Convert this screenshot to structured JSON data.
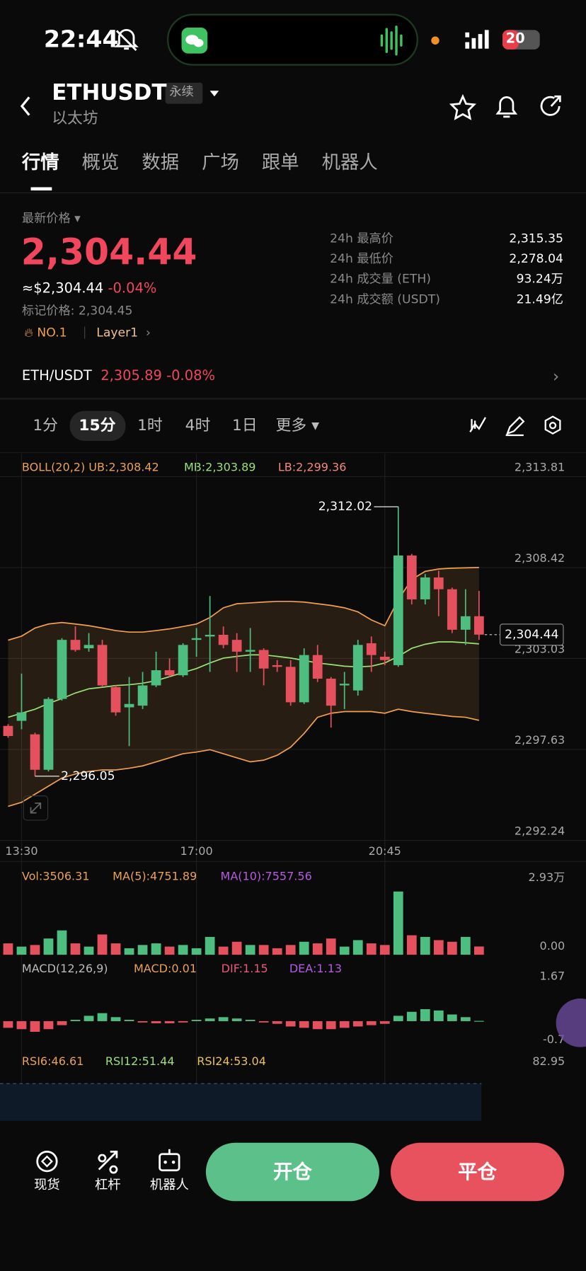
{
  "status_bar": {
    "time": "22:44",
    "battery": "20"
  },
  "header": {
    "symbol": "ETHUSDT",
    "tag": "永续",
    "name": "以太坊"
  },
  "tabs": [
    "行情",
    "概览",
    "数据",
    "广场",
    "跟单",
    "机器人"
  ],
  "ticker": {
    "label": "最新价格",
    "price": "2,304.44",
    "usd": "≈$2,304.44",
    "change": "-0.04%",
    "mark_price": "标记价格: 2,304.45",
    "rank": "NO.1",
    "sector": "Layer1",
    "stats": [
      {
        "label": "24h 最高价",
        "value": "2,315.35"
      },
      {
        "label": "24h 最低价",
        "value": "2,278.04"
      },
      {
        "label": "24h 成交量 (ETH)",
        "value": "93.24万"
      },
      {
        "label": "24h 成交额 (USDT)",
        "value": "21.49亿"
      }
    ]
  },
  "spot": {
    "pair": "ETH/USDT",
    "price": "2,305.89",
    "change": "-0.08%"
  },
  "intervals": [
    "1分",
    "15分",
    "1时",
    "4时",
    "1日",
    "更多"
  ],
  "kline": {
    "type": "candlestick",
    "boll_label": "BOLL(20,2) UB:2,308.42",
    "mb_label": "MB:2,303.89",
    "lb_label": "LB:2,299.36",
    "categories": [
      null,
      "13:30",
      null,
      null,
      null,
      null,
      null,
      null,
      null,
      null,
      null,
      null,
      null,
      null,
      "17:00",
      null,
      null,
      null,
      null,
      null,
      null,
      null,
      null,
      null,
      null,
      null,
      null,
      null,
      "20:45",
      null,
      null,
      null,
      null,
      null,
      null,
      null
    ],
    "open": [
      2299.03,
      2299.33,
      2298.53,
      2296.43,
      2300.63,
      2304.13,
      2303.63,
      2303.83,
      2301.33,
      2300.13,
      2300.23,
      2301.43,
      2302.33,
      2302.03,
      2304.13,
      2304.33,
      2304.43,
      2304.13,
      2303.43,
      2303.53,
      2302.63,
      2302.53,
      2300.43,
      2303.23,
      2301.83,
      2301.43,
      2301.13,
      2303.93,
      2303.13,
      2302.63,
      2309.13,
      2306.53,
      2307.83,
      2307.13,
      2304.73,
      2305.53
    ],
    "high": [
      2299.13,
      2302.13,
      2298.63,
      2300.73,
      2304.23,
      2304.93,
      2304.53,
      2304.13,
      2301.43,
      2301.93,
      2302.23,
      2303.43,
      2303.03,
      2303.93,
      2304.83,
      2306.73,
      2304.93,
      2304.53,
      2304.83,
      2303.63,
      2302.93,
      2302.93,
      2303.63,
      2303.83,
      2301.93,
      2302.23,
      2304.13,
      2304.33,
      2303.43,
      2312.02,
      2309.23,
      2308.03,
      2308.23,
      2307.23,
      2307.13,
      2307.03
    ],
    "low": [
      2298.33,
      2298.83,
      2296.05,
      2296.33,
      2300.53,
      2303.43,
      2303.43,
      2301.33,
      2299.63,
      2297.83,
      2300.03,
      2301.33,
      2301.93,
      2301.93,
      2303.13,
      2302.23,
      2303.63,
      2302.23,
      2302.23,
      2301.43,
      2302.23,
      2300.23,
      2300.33,
      2301.63,
      2298.93,
      2300.03,
      2300.83,
      2302.23,
      2302.63,
      2302.53,
      2306.23,
      2306.23,
      2305.53,
      2304.53,
      2303.83,
      2304.13
    ],
    "close": [
      2298.43,
      2299.83,
      2296.43,
      2300.63,
      2304.13,
      2303.53,
      2303.83,
      2301.43,
      2299.83,
      2300.33,
      2301.43,
      2302.33,
      2302.03,
      2303.83,
      2304.23,
      2304.43,
      2303.83,
      2303.43,
      2303.53,
      2302.43,
      2302.53,
      2300.43,
      2303.23,
      2301.83,
      2300.23,
      2301.53,
      2303.83,
      2303.23,
      2302.93,
      2309.13,
      2306.53,
      2307.83,
      2307.13,
      2304.73,
      2305.53,
      2304.44
    ],
    "ub": [
      2304.11,
      2304.35,
      2304.83,
      2305.07,
      2305.16,
      2305.07,
      2304.97,
      2304.83,
      2304.68,
      2304.59,
      2304.59,
      2304.68,
      2304.78,
      2304.92,
      2305.07,
      2305.45,
      2306.03,
      2306.27,
      2306.32,
      2306.37,
      2306.41,
      2306.41,
      2306.37,
      2306.27,
      2306.17,
      2306.03,
      2305.79,
      2305.31,
      2304.97,
      2306.51,
      2307.71,
      2308.19,
      2308.33,
      2308.38,
      2308.4,
      2308.42
    ],
    "mb": [
      2299.54,
      2299.78,
      2300.02,
      2300.36,
      2300.65,
      2300.98,
      2301.23,
      2301.32,
      2301.42,
      2301.47,
      2301.56,
      2301.71,
      2301.95,
      2302.19,
      2302.43,
      2302.76,
      2303.05,
      2303.15,
      2303.24,
      2303.24,
      2303.15,
      2303.05,
      2302.91,
      2302.76,
      2302.67,
      2302.57,
      2302.53,
      2302.57,
      2302.76,
      2303.15,
      2303.63,
      2303.87,
      2304.01,
      2304.01,
      2303.96,
      2303.89
    ],
    "lb": [
      2294.26,
      2294.5,
      2294.98,
      2295.46,
      2295.94,
      2296.18,
      2296.33,
      2296.42,
      2296.42,
      2296.52,
      2296.66,
      2296.9,
      2297.14,
      2297.38,
      2297.48,
      2297.62,
      2297.38,
      2297.14,
      2296.9,
      2297,
      2297.29,
      2297.77,
      2298.58,
      2299.54,
      2299.78,
      2299.88,
      2299.88,
      2299.88,
      2299.78,
      2300.02,
      2299.88,
      2299.78,
      2299.69,
      2299.59,
      2299.54,
      2299.36
    ],
    "ylim": [
      2292.24,
      2313.81
    ],
    "yticks": [
      {
        "value": 2313.81,
        "label": "2,313.81"
      },
      {
        "value": 2308.42,
        "label": "2,308.42"
      },
      {
        "value": 2303.03,
        "label": "2,303.03"
      },
      {
        "value": 2297.63,
        "label": "2,297.63"
      },
      {
        "value": 2292.24,
        "label": "2,292.24"
      }
    ],
    "annotations": [
      "2,312.02",
      "2,296.05"
    ],
    "last_price": "2,304.44",
    "up_color": "#4dbd80",
    "down_color": "#e5505f",
    "band_color": "#f0a050",
    "mid_color": "#9be07a"
  },
  "volume": {
    "labels": [
      "Vol:3506.31",
      "MA(5):4751.89",
      "MA(10):7557.56"
    ],
    "values": [
      4826,
      3447,
      4137,
      6894,
      10341,
      4826,
      3447,
      8618,
      4826,
      2758,
      4137,
      4826,
      3447,
      4137,
      2758,
      7584,
      3447,
      5515,
      4137,
      4137,
      2758,
      4137,
      5515,
      4826,
      6894,
      3447,
      6205,
      4826,
      4137,
      26888,
      8273,
      7584,
      6205,
      5515,
      7584,
      3506.31
    ],
    "ylim": [
      0,
      29300
    ],
    "yticks": [
      {
        "value": 29300,
        "label": "2.93万"
      },
      {
        "value": 0,
        "label": "0.00"
      }
    ]
  },
  "macd": {
    "labels": [
      "MACD(12,26,9)",
      "MACD:0.01",
      "DIF:1.15",
      "DEA:1.13"
    ],
    "values": [
      -0.25,
      -0.3,
      -0.4,
      -0.3,
      -0.15,
      0.05,
      0.2,
      0.3,
      0.15,
      0.05,
      -0.05,
      -0.08,
      -0.08,
      -0.05,
      0.05,
      0.1,
      0.15,
      0.1,
      0.05,
      -0.05,
      -0.1,
      -0.2,
      -0.25,
      -0.3,
      -0.3,
      -0.25,
      -0.2,
      -0.15,
      -0.1,
      0.2,
      0.35,
      0.45,
      0.4,
      0.25,
      0.15,
      0.01
    ],
    "ylim": [
      -0.7,
      1.67
    ],
    "yticks": [
      1.67,
      -0.7
    ]
  },
  "rsi": {
    "labels": [
      "RSI6:46.61",
      "RSI12:51.44",
      "RSI24:53.04"
    ],
    "yticks": [
      82.95
    ]
  },
  "bottom_bar": {
    "items": [
      "现货",
      "杠杆",
      "机器人"
    ],
    "open": "开仓",
    "close": "平仓"
  }
}
